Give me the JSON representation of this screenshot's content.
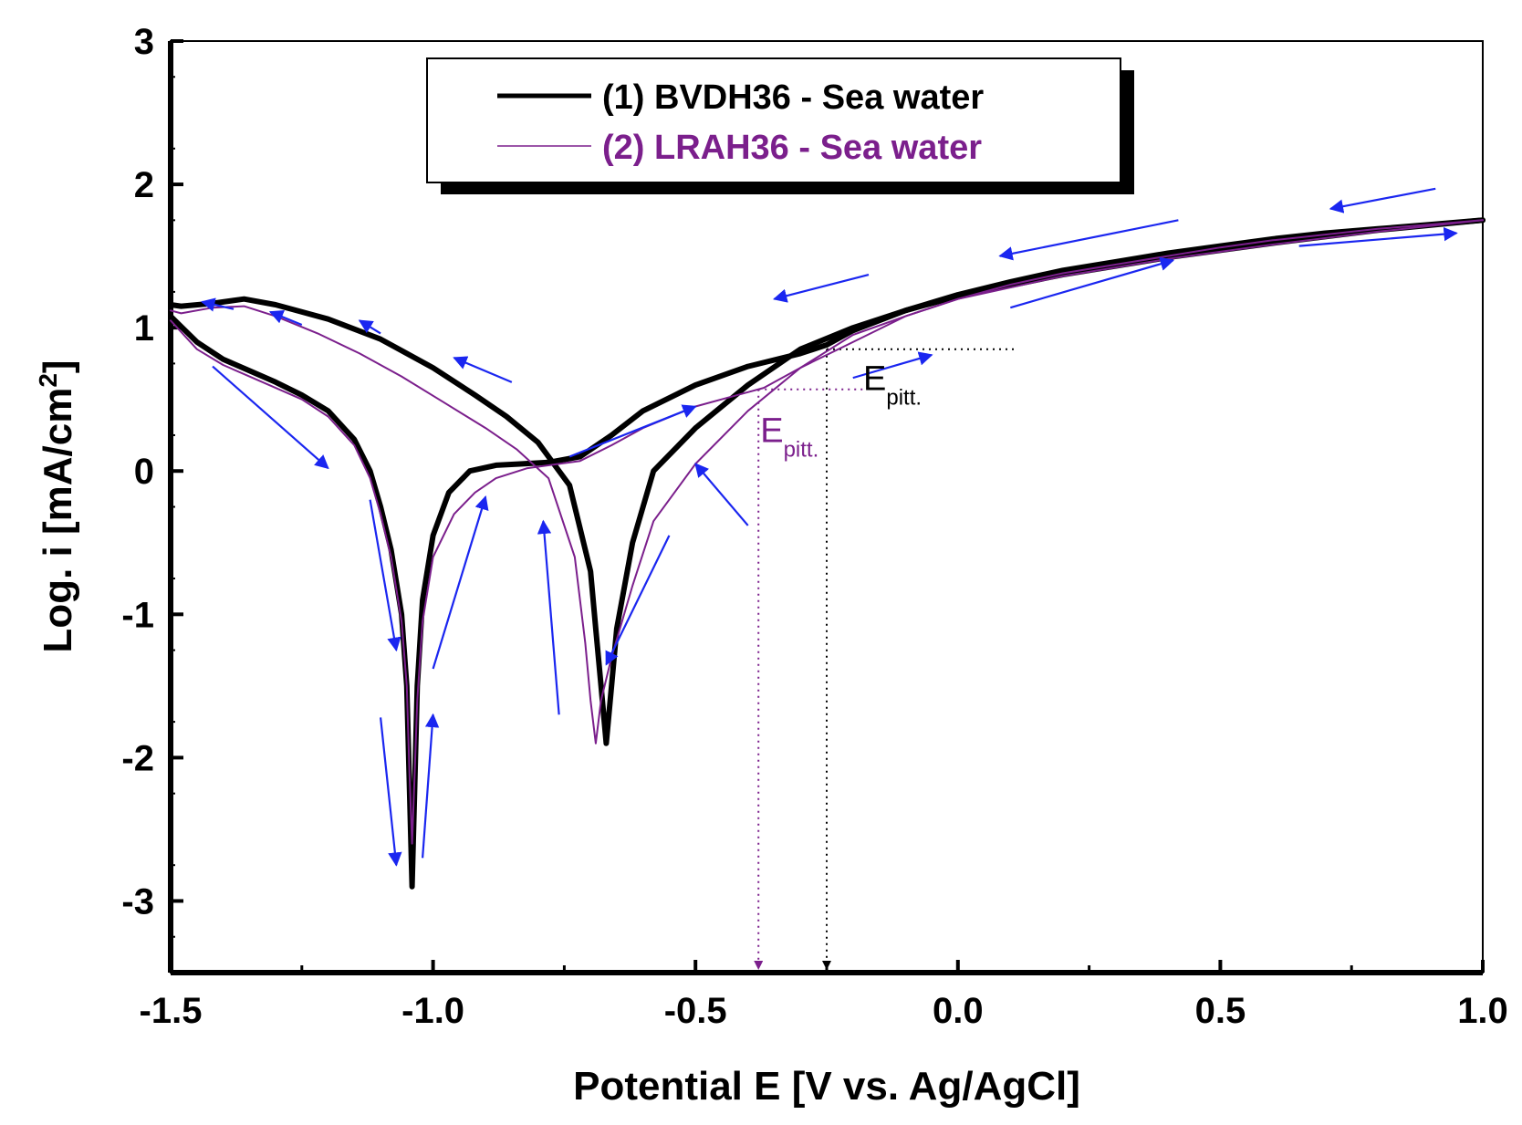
{
  "chart_data": {
    "type": "line",
    "title": "",
    "xlabel": "Potential E [V vs. Ag/AgCl]",
    "ylabel_main": "Log. i [mA/cm",
    "ylabel_sup": "2",
    "ylabel_end": "]",
    "xlim": [
      -1.5,
      1.0
    ],
    "ylim": [
      -3.5,
      3.0
    ],
    "xticks": [
      {
        "v": -1.5,
        "label": "-1.5"
      },
      {
        "v": -1.0,
        "label": "-1.0"
      },
      {
        "v": -0.5,
        "label": "-0.5"
      },
      {
        "v": 0.0,
        "label": "0.0"
      },
      {
        "v": 0.5,
        "label": "0.5"
      },
      {
        "v": 1.0,
        "label": "1.0"
      }
    ],
    "yticks": [
      {
        "v": 3,
        "label": "3"
      },
      {
        "v": 2,
        "label": "2"
      },
      {
        "v": 1,
        "label": "1"
      },
      {
        "v": 0,
        "label": "0"
      },
      {
        "v": -1,
        "label": "-1"
      },
      {
        "v": -2,
        "label": "-2"
      },
      {
        "v": -3,
        "label": "-3"
      }
    ],
    "legend_position": "top-center",
    "series": [
      {
        "name": "(1) BVDH36 - Sea water",
        "color": "#000000",
        "forward": {
          "x": [
            -1.5,
            -1.45,
            -1.4,
            -1.35,
            -1.3,
            -1.25,
            -1.2,
            -1.15,
            -1.12,
            -1.1,
            -1.08,
            -1.06,
            -1.05,
            -1.045,
            -1.04,
            -1.035,
            -1.03,
            -1.02,
            -1.0,
            -0.97,
            -0.93,
            -0.88,
            -0.83,
            -0.78,
            -0.72,
            -0.66,
            -0.6,
            -0.5,
            -0.4,
            -0.3,
            -0.25,
            -0.2,
            -0.1,
            0.0,
            0.1,
            0.2,
            0.3,
            0.4,
            0.5,
            0.6,
            0.7,
            0.8,
            0.9,
            1.0
          ],
          "y": [
            1.08,
            0.9,
            0.78,
            0.7,
            0.62,
            0.53,
            0.42,
            0.22,
            0.0,
            -0.25,
            -0.55,
            -1.0,
            -1.5,
            -2.2,
            -2.9,
            -2.2,
            -1.5,
            -0.9,
            -0.45,
            -0.15,
            0.0,
            0.04,
            0.05,
            0.06,
            0.1,
            0.25,
            0.42,
            0.6,
            0.73,
            0.82,
            0.88,
            0.98,
            1.12,
            1.23,
            1.32,
            1.4,
            1.46,
            1.52,
            1.57,
            1.62,
            1.66,
            1.69,
            1.72,
            1.75
          ]
        },
        "reverse": {
          "x": [
            1.0,
            0.8,
            0.6,
            0.4,
            0.2,
            0.0,
            -0.1,
            -0.2,
            -0.3,
            -0.4,
            -0.5,
            -0.58,
            -0.62,
            -0.65,
            -0.66,
            -0.67,
            -0.68,
            -0.69,
            -0.7,
            -0.74,
            -0.8,
            -0.86,
            -0.92,
            -1.0,
            -1.1,
            -1.2,
            -1.3,
            -1.36,
            -1.42,
            -1.48,
            -1.5
          ],
          "y": [
            1.75,
            1.68,
            1.59,
            1.49,
            1.37,
            1.22,
            1.12,
            1.0,
            0.85,
            0.6,
            0.3,
            0.0,
            -0.5,
            -1.1,
            -1.5,
            -1.9,
            -1.5,
            -1.1,
            -0.7,
            -0.1,
            0.2,
            0.38,
            0.53,
            0.72,
            0.92,
            1.06,
            1.16,
            1.2,
            1.17,
            1.15,
            1.16
          ]
        }
      },
      {
        "name": "(2) LRAH36 - Sea water",
        "color": "#7b1f8c",
        "forward": {
          "x": [
            -1.5,
            -1.45,
            -1.4,
            -1.35,
            -1.3,
            -1.25,
            -1.2,
            -1.15,
            -1.12,
            -1.1,
            -1.08,
            -1.06,
            -1.05,
            -1.045,
            -1.04,
            -1.035,
            -1.03,
            -1.02,
            -1.0,
            -0.96,
            -0.92,
            -0.88,
            -0.82,
            -0.76,
            -0.72,
            -0.66,
            -0.6,
            -0.5,
            -0.4,
            -0.37,
            -0.3,
            -0.2,
            -0.1,
            0.0,
            0.1,
            0.2,
            0.3,
            0.4,
            0.5,
            0.6,
            0.7,
            0.8,
            0.9,
            1.0
          ],
          "y": [
            1.05,
            0.85,
            0.74,
            0.66,
            0.58,
            0.5,
            0.38,
            0.18,
            -0.05,
            -0.3,
            -0.6,
            -1.05,
            -1.5,
            -2.1,
            -2.6,
            -2.1,
            -1.6,
            -1.05,
            -0.6,
            -0.3,
            -0.15,
            -0.05,
            0.02,
            0.05,
            0.07,
            0.18,
            0.3,
            0.45,
            0.55,
            0.58,
            0.72,
            0.9,
            1.08,
            1.2,
            1.3,
            1.38,
            1.44,
            1.5,
            1.56,
            1.61,
            1.65,
            1.69,
            1.72,
            1.75
          ]
        },
        "reverse": {
          "x": [
            1.0,
            0.8,
            0.6,
            0.4,
            0.2,
            0.0,
            -0.1,
            -0.2,
            -0.3,
            -0.4,
            -0.5,
            -0.58,
            -0.62,
            -0.66,
            -0.68,
            -0.69,
            -0.7,
            -0.71,
            -0.73,
            -0.78,
            -0.84,
            -0.9,
            -0.98,
            -1.06,
            -1.14,
            -1.22,
            -1.3,
            -1.36,
            -1.42,
            -1.48,
            -1.5
          ],
          "y": [
            1.75,
            1.67,
            1.58,
            1.48,
            1.36,
            1.2,
            1.08,
            0.95,
            0.72,
            0.42,
            0.05,
            -0.35,
            -0.8,
            -1.3,
            -1.6,
            -1.9,
            -1.6,
            -1.2,
            -0.6,
            -0.05,
            0.15,
            0.3,
            0.48,
            0.66,
            0.82,
            0.96,
            1.08,
            1.15,
            1.14,
            1.1,
            1.12
          ]
        }
      }
    ],
    "direction_arrows": [
      [
        -1.38,
        1.13,
        -1.44,
        1.18
      ],
      [
        -1.25,
        1.02,
        -1.31,
        1.11
      ],
      [
        -1.1,
        0.96,
        -1.14,
        1.05
      ],
      [
        -0.85,
        0.62,
        -0.96,
        0.79
      ],
      [
        -1.42,
        0.73,
        -1.2,
        0.02
      ],
      [
        -1.12,
        -0.2,
        -1.07,
        -1.25
      ],
      [
        -1.1,
        -1.72,
        -1.07,
        -2.75
      ],
      [
        -1.02,
        -2.7,
        -1.0,
        -1.7
      ],
      [
        -1.0,
        -1.38,
        -0.9,
        -0.18
      ],
      [
        -0.76,
        -1.7,
        -0.79,
        -0.35
      ],
      [
        -0.74,
        0.1,
        -0.5,
        0.45
      ],
      [
        -0.4,
        -0.38,
        -0.5,
        0.05
      ],
      [
        -0.55,
        -0.45,
        -0.67,
        -1.35
      ],
      [
        -0.2,
        0.65,
        -0.05,
        0.81
      ],
      [
        0.1,
        1.14,
        0.41,
        1.47
      ],
      [
        0.65,
        1.57,
        0.95,
        1.66
      ],
      [
        0.91,
        1.97,
        0.71,
        1.83
      ],
      [
        0.42,
        1.75,
        0.08,
        1.5
      ],
      [
        -0.17,
        1.37,
        -0.35,
        1.2
      ]
    ],
    "annotations": [
      {
        "label": "E",
        "sub": "pitt.",
        "color": "#000000",
        "x": -0.25,
        "y": 0.85,
        "line_to_x": 0.11
      },
      {
        "label": "E",
        "sub": "pitt.",
        "color": "#7b1f8c",
        "x": -0.38,
        "y": 0.57,
        "line_to_x": -0.18
      }
    ]
  }
}
